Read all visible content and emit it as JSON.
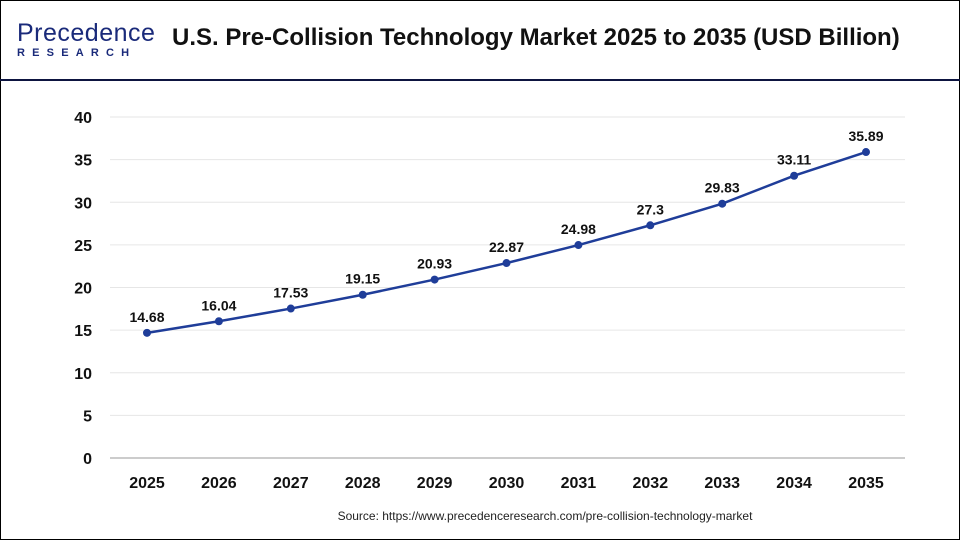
{
  "header": {
    "logo_top": "Precedence",
    "logo_bottom": "RESEARCH",
    "title": "U.S. Pre-Collision Technology Market 2025 to 2035  (USD Billion)"
  },
  "source": "Source: https://www.precedenceresearch.com/pre-collision-technology-market",
  "chart_data": {
    "type": "line",
    "title": "U.S. Pre-Collision Technology Market 2025 to 2035  (USD Billion)",
    "xlabel": "",
    "ylabel": "",
    "categories": [
      "2025",
      "2026",
      "2027",
      "2028",
      "2029",
      "2030",
      "2031",
      "2032",
      "2033",
      "2034",
      "2035"
    ],
    "values": [
      14.68,
      16.04,
      17.53,
      19.15,
      20.93,
      22.87,
      24.98,
      27.3,
      29.83,
      33.11,
      35.89
    ],
    "data_labels": [
      "14.68",
      "16.04",
      "17.53",
      "19.15",
      "20.93",
      "22.87",
      "24.98",
      "27.3",
      "29.83",
      "33.11",
      "35.89"
    ],
    "ylim": [
      0,
      40
    ],
    "yticks": [
      "0",
      "5",
      "10",
      "15",
      "20",
      "25",
      "30",
      "35",
      "40"
    ],
    "grid": true,
    "line_color": "#1f3d99"
  }
}
